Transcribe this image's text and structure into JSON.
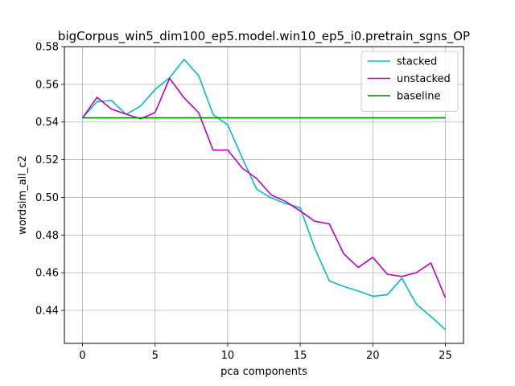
{
  "chart_data": {
    "type": "line",
    "title": "bigCorpus_win5_dim100_ep5.model.win10_ep5_i0.pretrain_sgns_OP",
    "xlabel": "pca components",
    "ylabel": "wordsim_all_c2",
    "xlim": [
      -1.25,
      26.25
    ],
    "ylim": [
      0.4225,
      0.58
    ],
    "xticks": [
      0,
      5,
      10,
      15,
      20,
      25
    ],
    "yticks": [
      0.44,
      0.46,
      0.48,
      0.5,
      0.52,
      0.54,
      0.56,
      0.58
    ],
    "ytick_labels": [
      "0.44",
      "0.46",
      "0.48",
      "0.50",
      "0.52",
      "0.54",
      "0.56",
      "0.58"
    ],
    "grid": true,
    "legend_position": "top-right",
    "x": [
      0,
      1,
      2,
      3,
      4,
      5,
      6,
      7,
      8,
      9,
      10,
      11,
      12,
      13,
      14,
      15,
      16,
      17,
      18,
      19,
      20,
      21,
      22,
      23,
      24,
      25
    ],
    "series": [
      {
        "name": "stacked",
        "color": "#00bfbf",
        "values": [
          0.5422,
          0.5508,
          0.5514,
          0.544,
          0.5485,
          0.5573,
          0.5635,
          0.5732,
          0.5647,
          0.544,
          0.5385,
          0.521,
          0.5043,
          0.4997,
          0.4967,
          0.4945,
          0.473,
          0.4557,
          0.4527,
          0.4503,
          0.4475,
          0.4483,
          0.4571,
          0.4433,
          0.4368,
          0.4298
        ]
      },
      {
        "name": "unstacked",
        "color": "#bf00bf",
        "values": [
          0.5422,
          0.5531,
          0.5468,
          0.5442,
          0.5417,
          0.545,
          0.5632,
          0.5528,
          0.545,
          0.525,
          0.5252,
          0.5156,
          0.51,
          0.5013,
          0.4978,
          0.4928,
          0.4873,
          0.486,
          0.47,
          0.4628,
          0.4682,
          0.4592,
          0.458,
          0.46,
          0.4652,
          0.4468
        ]
      },
      {
        "name": "baseline",
        "color": "#008000",
        "values": [
          0.5422,
          0.5422,
          0.5422,
          0.5422,
          0.5422,
          0.5422,
          0.5422,
          0.5422,
          0.5422,
          0.5422,
          0.5422,
          0.5422,
          0.5422,
          0.5422,
          0.5422,
          0.5422,
          0.5422,
          0.5422,
          0.5422,
          0.5422,
          0.5422,
          0.5422,
          0.5422,
          0.5422,
          0.5422,
          0.5422
        ]
      }
    ]
  }
}
